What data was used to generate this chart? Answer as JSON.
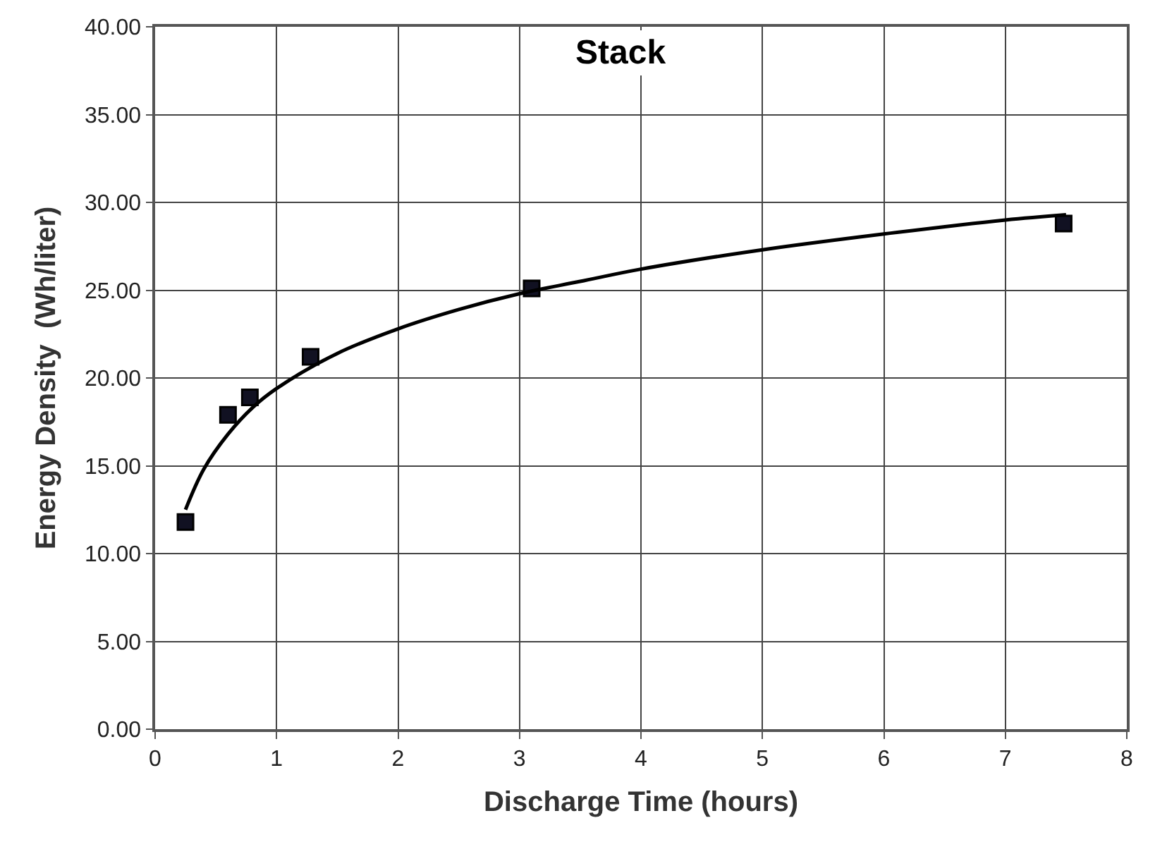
{
  "chart_data": {
    "type": "scatter",
    "title": "Stack",
    "xlabel": "Discharge Time (hours)",
    "ylabel": "Energy Density  (Wh/liter)",
    "series": [
      {
        "color": "#111122",
        "marker": "square",
        "x": [
          0.25,
          0.6,
          0.78,
          1.28,
          3.1,
          7.48
        ],
        "values": [
          11.8,
          17.9,
          18.9,
          21.2,
          25.1,
          28.8
        ]
      },
      {
        "type": "line",
        "color": "#000000",
        "line_style": "solid",
        "x": [
          0.25,
          0.4,
          0.6,
          0.8,
          1,
          1.5,
          2,
          2.5,
          3,
          3.5,
          4,
          5,
          6,
          7,
          7.5
        ],
        "values": [
          12.5,
          14.8,
          16.8,
          18.3,
          19.4,
          21.4,
          22.8,
          23.9,
          24.8,
          25.5,
          26.2,
          27.3,
          28.2,
          29.0,
          29.3
        ]
      }
    ],
    "xlim": [
      0,
      8
    ],
    "xticks": [
      0,
      1,
      2,
      3,
      4,
      5,
      6,
      7,
      8
    ],
    "ylim": [
      0,
      40
    ],
    "yticks": [
      {
        "value": 0,
        "label": "0.00"
      },
      {
        "value": 5,
        "label": "5.00"
      },
      {
        "value": 10,
        "label": "10.00"
      },
      {
        "value": 15,
        "label": "15.00"
      },
      {
        "value": 20,
        "label": "20.00"
      },
      {
        "value": 25,
        "label": "25.00"
      },
      {
        "value": 30,
        "label": "30.00"
      },
      {
        "value": 35,
        "label": "35.00"
      },
      {
        "value": 40,
        "label": "40.00"
      }
    ],
    "grid": true
  }
}
